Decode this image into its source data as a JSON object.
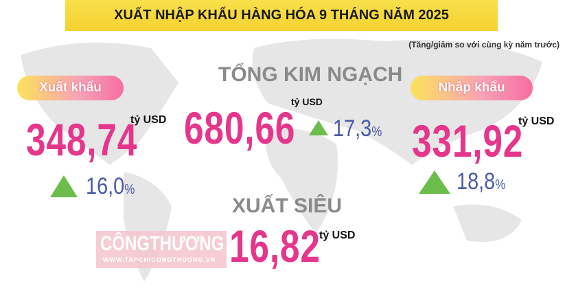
{
  "header": {
    "title": "XUẤT NHẬP KHẨU HÀNG HÓA 9 THÁNG NĂM 2025",
    "subtitle": "(Tăng/giảm so với cùng kỳ năm trước)"
  },
  "export": {
    "label": "Xuất khẩu",
    "value": "348,74",
    "unit": "tỷ USD",
    "growth": "16,0",
    "growth_unit": "%"
  },
  "total": {
    "label": "TỔNG KIM NGẠCH",
    "value": "680,66",
    "unit": "tỷ USD",
    "growth": "17,3",
    "growth_unit": "%"
  },
  "import": {
    "label": "Nhập khẩu",
    "value": "331,92",
    "unit": "tỷ USD",
    "growth": "18,8",
    "growth_unit": "%"
  },
  "surplus": {
    "label": "XUẤT SIÊU",
    "value": "16,82",
    "unit": "tỷ USD"
  },
  "watermark": {
    "brand": "CÔNGTHƯƠNG",
    "site": "WWW.TAPCHICONGTHUONG.VN"
  }
}
